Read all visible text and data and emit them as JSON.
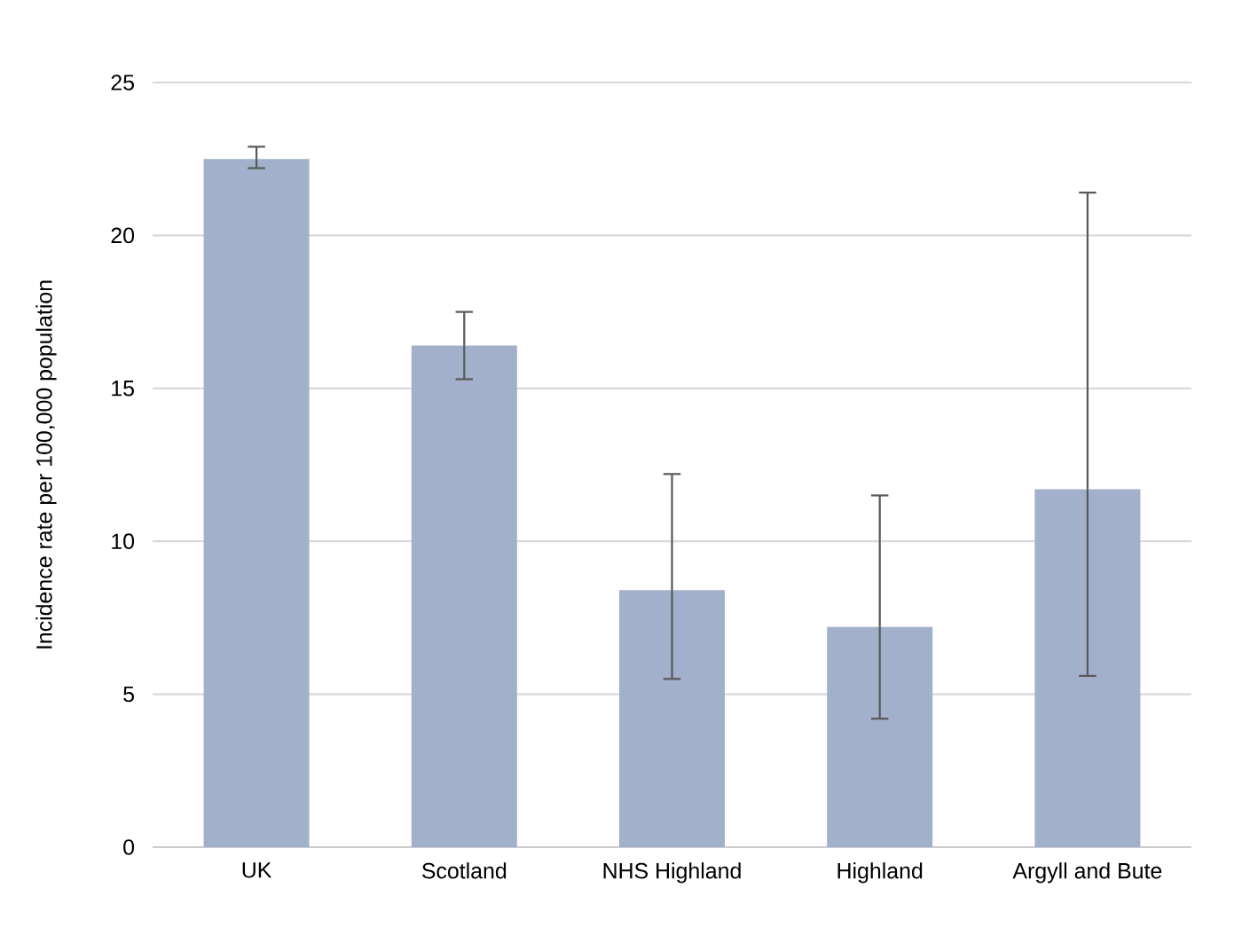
{
  "chart_data": {
    "type": "bar",
    "ylabel": "Incidence rate per 100,000 population",
    "categories": [
      "UK",
      "Scotland",
      "NHS Highland",
      "Highland",
      "Argyll and Bute"
    ],
    "values": [
      22.5,
      16.4,
      8.4,
      7.2,
      11.7
    ],
    "errors": [
      [
        22.2,
        22.9
      ],
      [
        15.3,
        17.5
      ],
      [
        5.5,
        12.2
      ],
      [
        4.2,
        11.5
      ],
      [
        5.6,
        21.4
      ]
    ],
    "color": "#a2b0cc",
    "ylim": [
      0,
      25
    ],
    "yticks": [
      0,
      5,
      10,
      15,
      20,
      25
    ],
    "grid": "y"
  }
}
